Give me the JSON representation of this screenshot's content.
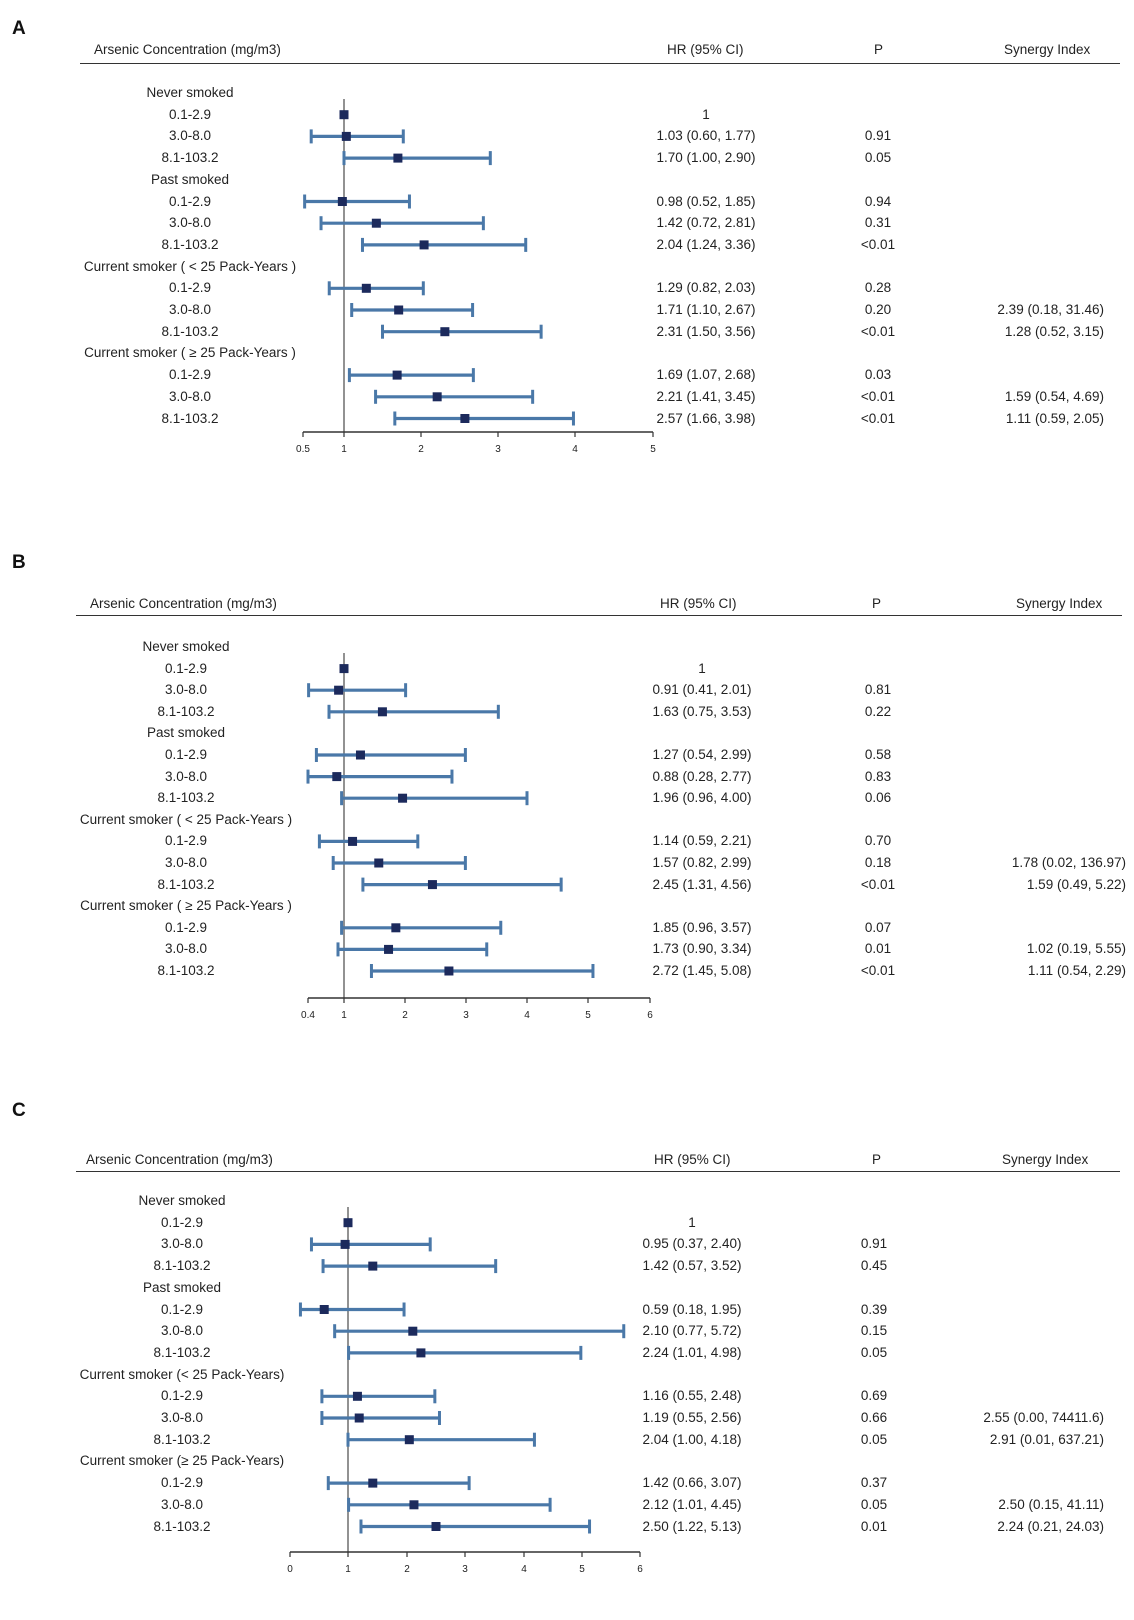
{
  "headers": {
    "exposure": "Arsenic Concentration (mg/m3)",
    "hr": "HR (95% CI)",
    "p": "P",
    "synergy": "Synergy Index"
  },
  "chart_data": [
    {
      "type": "forest",
      "panel_label": "A",
      "reference_line": 1,
      "xlim": [
        0.5,
        5
      ],
      "ticks": [
        {
          "value": 0.5,
          "label": "0.5"
        },
        {
          "value": 1,
          "label": "1"
        },
        {
          "value": 2,
          "label": "2"
        },
        {
          "value": 3,
          "label": "3"
        },
        {
          "value": 4,
          "label": "4"
        },
        {
          "value": 5,
          "label": "5"
        }
      ],
      "rows": [
        {
          "kind": "group",
          "label": "Never smoked"
        },
        {
          "kind": "item",
          "label": "0.1-2.9",
          "hr": 1,
          "lo": 1,
          "hi": 1,
          "hr_text": "1",
          "p": "",
          "synergy": ""
        },
        {
          "kind": "item",
          "label": "3.0-8.0",
          "hr": 1.03,
          "lo": 0.6,
          "hi": 1.77,
          "hr_text": "1.03 (0.60, 1.77)",
          "p": "0.91",
          "synergy": ""
        },
        {
          "kind": "item",
          "label": "8.1-103.2",
          "hr": 1.7,
          "lo": 1.0,
          "hi": 2.9,
          "hr_text": "1.70 (1.00, 2.90)",
          "p": "0.05",
          "synergy": ""
        },
        {
          "kind": "group",
          "label": "Past smoked"
        },
        {
          "kind": "item",
          "label": "0.1-2.9",
          "hr": 0.98,
          "lo": 0.52,
          "hi": 1.85,
          "hr_text": "0.98 (0.52, 1.85)",
          "p": "0.94",
          "synergy": ""
        },
        {
          "kind": "item",
          "label": "3.0-8.0",
          "hr": 1.42,
          "lo": 0.72,
          "hi": 2.81,
          "hr_text": "1.42 (0.72, 2.81)",
          "p": "0.31",
          "synergy": ""
        },
        {
          "kind": "item",
          "label": "8.1-103.2",
          "hr": 2.04,
          "lo": 1.24,
          "hi": 3.36,
          "hr_text": "2.04 (1.24, 3.36)",
          "p": "<0.01",
          "synergy": ""
        },
        {
          "kind": "group",
          "label": "Current smoker ( < 25 Pack-Years )"
        },
        {
          "kind": "item",
          "label": "0.1-2.9",
          "hr": 1.29,
          "lo": 0.82,
          "hi": 2.03,
          "hr_text": "1.29 (0.82, 2.03)",
          "p": "0.28",
          "synergy": ""
        },
        {
          "kind": "item",
          "label": "3.0-8.0",
          "hr": 1.71,
          "lo": 1.1,
          "hi": 2.67,
          "hr_text": "1.71 (1.10, 2.67)",
          "p": "0.20",
          "synergy": "2.39 (0.18, 31.46)"
        },
        {
          "kind": "item",
          "label": "8.1-103.2",
          "hr": 2.31,
          "lo": 1.5,
          "hi": 3.56,
          "hr_text": "2.31 (1.50, 3.56)",
          "p": "<0.01",
          "synergy": "1.28 (0.52, 3.15)"
        },
        {
          "kind": "group",
          "label": "Current smoker ( ≥ 25 Pack-Years )"
        },
        {
          "kind": "item",
          "label": "0.1-2.9",
          "hr": 1.69,
          "lo": 1.07,
          "hi": 2.68,
          "hr_text": "1.69 (1.07, 2.68)",
          "p": "0.03",
          "synergy": ""
        },
        {
          "kind": "item",
          "label": "3.0-8.0",
          "hr": 2.21,
          "lo": 1.41,
          "hi": 3.45,
          "hr_text": "2.21 (1.41, 3.45)",
          "p": "<0.01",
          "synergy": "1.59 (0.54, 4.69)"
        },
        {
          "kind": "item",
          "label": "8.1-103.2",
          "hr": 2.57,
          "lo": 1.66,
          "hi": 3.98,
          "hr_text": "2.57 (1.66, 3.98)",
          "p": "<0.01",
          "synergy": "1.11 (0.59, 2.05)"
        }
      ]
    },
    {
      "type": "forest",
      "panel_label": "B",
      "reference_line": 1,
      "xlim": [
        0.4,
        6
      ],
      "ticks": [
        {
          "value": 0.4,
          "label": "0.4"
        },
        {
          "value": 1,
          "label": "1"
        },
        {
          "value": 2,
          "label": "2"
        },
        {
          "value": 3,
          "label": "3"
        },
        {
          "value": 4,
          "label": "4"
        },
        {
          "value": 5,
          "label": "5"
        },
        {
          "value": 6,
          "label": "6"
        }
      ],
      "rows": [
        {
          "kind": "group",
          "label": "Never smoked"
        },
        {
          "kind": "item",
          "label": "0.1-2.9",
          "hr": 1,
          "lo": 1,
          "hi": 1,
          "hr_text": "1",
          "p": "",
          "synergy": ""
        },
        {
          "kind": "item",
          "label": "3.0-8.0",
          "hr": 0.91,
          "lo": 0.41,
          "hi": 2.01,
          "hr_text": "0.91 (0.41, 2.01)",
          "p": "0.81",
          "synergy": ""
        },
        {
          "kind": "item",
          "label": "8.1-103.2",
          "hr": 1.63,
          "lo": 0.75,
          "hi": 3.53,
          "hr_text": "1.63 (0.75, 3.53)",
          "p": "0.22",
          "synergy": ""
        },
        {
          "kind": "group",
          "label": "Past smoked"
        },
        {
          "kind": "item",
          "label": "0.1-2.9",
          "hr": 1.27,
          "lo": 0.54,
          "hi": 2.99,
          "hr_text": "1.27 (0.54, 2.99)",
          "p": "0.58",
          "synergy": ""
        },
        {
          "kind": "item",
          "label": "3.0-8.0",
          "hr": 0.88,
          "lo": 0.28,
          "hi": 2.77,
          "hr_text": "0.88 (0.28, 2.77)",
          "p": "0.83",
          "synergy": ""
        },
        {
          "kind": "item",
          "label": "8.1-103.2",
          "hr": 1.96,
          "lo": 0.96,
          "hi": 4.0,
          "hr_text": "1.96 (0.96, 4.00)",
          "p": "0.06",
          "synergy": ""
        },
        {
          "kind": "group",
          "label": "Current smoker ( < 25 Pack-Years )"
        },
        {
          "kind": "item",
          "label": "0.1-2.9",
          "hr": 1.14,
          "lo": 0.59,
          "hi": 2.21,
          "hr_text": "1.14 (0.59, 2.21)",
          "p": "0.70",
          "synergy": ""
        },
        {
          "kind": "item",
          "label": "3.0-8.0",
          "hr": 1.57,
          "lo": 0.82,
          "hi": 2.99,
          "hr_text": "1.57 (0.82, 2.99)",
          "p": "0.18",
          "synergy": "1.78 (0.02, 136.97)"
        },
        {
          "kind": "item",
          "label": "8.1-103.2",
          "hr": 2.45,
          "lo": 1.31,
          "hi": 4.56,
          "hr_text": "2.45 (1.31, 4.56)",
          "p": "<0.01",
          "synergy": "1.59 (0.49, 5.22)"
        },
        {
          "kind": "group",
          "label": "Current smoker ( ≥ 25 Pack-Years )"
        },
        {
          "kind": "item",
          "label": "0.1-2.9",
          "hr": 1.85,
          "lo": 0.96,
          "hi": 3.57,
          "hr_text": "1.85 (0.96, 3.57)",
          "p": "0.07",
          "synergy": ""
        },
        {
          "kind": "item",
          "label": "3.0-8.0",
          "hr": 1.73,
          "lo": 0.9,
          "hi": 3.34,
          "hr_text": "1.73 (0.90, 3.34)",
          "p": "0.01",
          "synergy": "1.02 (0.19, 5.55)"
        },
        {
          "kind": "item",
          "label": "8.1-103.2",
          "hr": 2.72,
          "lo": 1.45,
          "hi": 5.08,
          "hr_text": "2.72 (1.45, 5.08)",
          "p": "<0.01",
          "synergy": "1.11 (0.54, 2.29)"
        }
      ]
    },
    {
      "type": "forest",
      "panel_label": "C",
      "reference_line": 1,
      "xlim": [
        0,
        6
      ],
      "ticks": [
        {
          "value": 0,
          "label": "0"
        },
        {
          "value": 1,
          "label": "1"
        },
        {
          "value": 2,
          "label": "2"
        },
        {
          "value": 3,
          "label": "3"
        },
        {
          "value": 4,
          "label": "4"
        },
        {
          "value": 5,
          "label": "5"
        },
        {
          "value": 6,
          "label": "6"
        }
      ],
      "rows": [
        {
          "kind": "group",
          "label": "Never smoked"
        },
        {
          "kind": "item",
          "label": "0.1-2.9",
          "hr": 1,
          "lo": 1,
          "hi": 1,
          "hr_text": "1",
          "p": "",
          "synergy": ""
        },
        {
          "kind": "item",
          "label": "3.0-8.0",
          "hr": 0.95,
          "lo": 0.37,
          "hi": 2.4,
          "hr_text": "0.95 (0.37, 2.40)",
          "p": "0.91",
          "synergy": ""
        },
        {
          "kind": "item",
          "label": "8.1-103.2",
          "hr": 1.42,
          "lo": 0.57,
          "hi": 3.52,
          "hr_text": "1.42 (0.57, 3.52)",
          "p": "0.45",
          "synergy": ""
        },
        {
          "kind": "group",
          "label": "Past smoked"
        },
        {
          "kind": "item",
          "label": "0.1-2.9",
          "hr": 0.59,
          "lo": 0.18,
          "hi": 1.95,
          "hr_text": "0.59 (0.18, 1.95)",
          "p": "0.39",
          "synergy": ""
        },
        {
          "kind": "item",
          "label": "3.0-8.0",
          "hr": 2.1,
          "lo": 0.77,
          "hi": 5.72,
          "hr_text": "2.10 (0.77, 5.72)",
          "p": "0.15",
          "synergy": ""
        },
        {
          "kind": "item",
          "label": "8.1-103.2",
          "hr": 2.24,
          "lo": 1.01,
          "hi": 4.98,
          "hr_text": "2.24 (1.01, 4.98)",
          "p": "0.05",
          "synergy": ""
        },
        {
          "kind": "group",
          "label": "Current smoker (< 25 Pack-Years)"
        },
        {
          "kind": "item",
          "label": "0.1-2.9",
          "hr": 1.16,
          "lo": 0.55,
          "hi": 2.48,
          "hr_text": "1.16 (0.55, 2.48)",
          "p": "0.69",
          "synergy": ""
        },
        {
          "kind": "item",
          "label": "3.0-8.0",
          "hr": 1.19,
          "lo": 0.55,
          "hi": 2.56,
          "hr_text": "1.19 (0.55, 2.56)",
          "p": "0.66",
          "synergy": "2.55 (0.00, 74411.6)"
        },
        {
          "kind": "item",
          "label": "8.1-103.2",
          "hr": 2.04,
          "lo": 1.0,
          "hi": 4.18,
          "hr_text": "2.04 (1.00, 4.18)",
          "p": "0.05",
          "synergy": "2.91 (0.01, 637.21)"
        },
        {
          "kind": "group",
          "label": "Current smoker (≥ 25 Pack-Years)"
        },
        {
          "kind": "item",
          "label": "0.1-2.9",
          "hr": 1.42,
          "lo": 0.66,
          "hi": 3.07,
          "hr_text": "1.42 (0.66, 3.07)",
          "p": "0.37",
          "synergy": ""
        },
        {
          "kind": "item",
          "label": "3.0-8.0",
          "hr": 2.12,
          "lo": 1.01,
          "hi": 4.45,
          "hr_text": "2.12 (1.01, 4.45)",
          "p": "0.05",
          "synergy": "2.50 (0.15, 41.11)"
        },
        {
          "kind": "item",
          "label": "8.1-103.2",
          "hr": 2.5,
          "lo": 1.22,
          "hi": 5.13,
          "hr_text": "2.50 (1.22, 5.13)",
          "p": "0.01",
          "synergy": "2.24 (0.21, 24.03)"
        }
      ]
    }
  ]
}
